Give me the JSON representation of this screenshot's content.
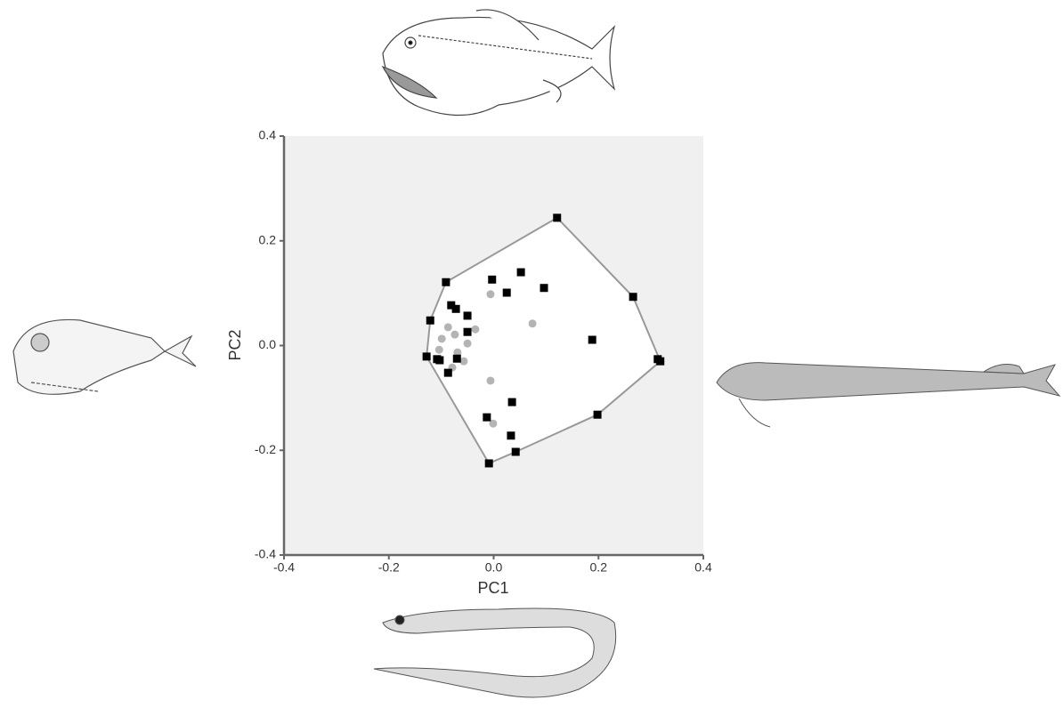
{
  "chart_data": {
    "type": "scatter",
    "xlabel": "PC1",
    "ylabel": "PC2",
    "xlim": [
      -0.4,
      0.4
    ],
    "ylim": [
      -0.4,
      0.4
    ],
    "xticks": [
      -0.4,
      -0.2,
      {
        "value": 0,
        "label": "0.0"
      },
      0.2,
      0.4
    ],
    "yticks": [
      -0.4,
      -0.2,
      {
        "value": 0,
        "label": "0.0"
      },
      0.2,
      0.4
    ],
    "background": "#f0f0f0",
    "hull_color": "#999999",
    "series": [
      {
        "color": "#000000",
        "marker": "square",
        "x": [
          0.121,
          0.266,
          0.313,
          0.318,
          0.198,
          0.042,
          -0.009,
          -0.128,
          -0.121,
          -0.091,
          -0.003,
          0.052,
          0.096,
          0.025,
          -0.081,
          -0.072,
          -0.05,
          -0.05,
          0.188,
          -0.108,
          -0.103,
          -0.07,
          -0.087,
          0.035,
          -0.013,
          0.033
        ],
        "values": [
          0.244,
          0.093,
          -0.026,
          -0.03,
          -0.132,
          -0.203,
          -0.225,
          -0.021,
          0.048,
          0.121,
          0.126,
          0.14,
          0.11,
          0.101,
          0.077,
          0.07,
          0.057,
          0.026,
          0.011,
          -0.026,
          -0.028,
          -0.025,
          -0.052,
          -0.108,
          -0.137,
          -0.172
        ]
      },
      {
        "color": "#b4b4b4",
        "marker": "circle",
        "x": [
          -0.006,
          0.074,
          -0.035,
          -0.087,
          -0.074,
          -0.099,
          -0.05,
          -0.104,
          -0.069,
          -0.057,
          -0.079,
          -0.006,
          -0.001
        ],
        "values": [
          0.098,
          0.042,
          0.031,
          0.035,
          0.021,
          0.013,
          0.004,
          -0.008,
          -0.013,
          -0.03,
          -0.042,
          -0.067,
          -0.149
        ]
      }
    ]
  }
}
